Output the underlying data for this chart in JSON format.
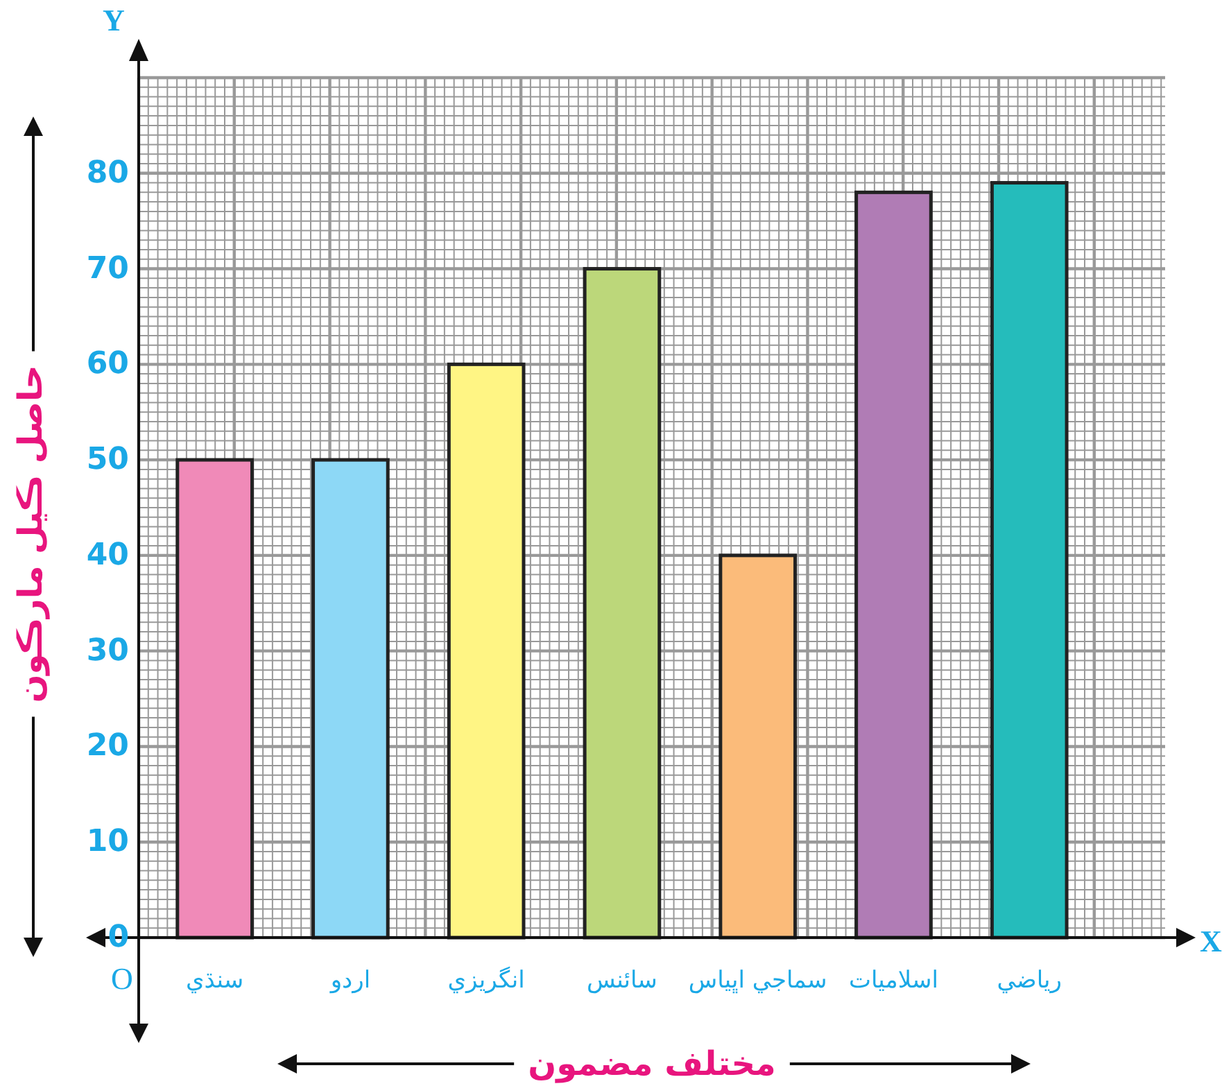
{
  "chart_data": {
    "type": "bar",
    "categories": [
      "سنڌي",
      "اردو",
      "انگريزي",
      "سائنس",
      "سماجي اڀياس",
      "اسلاميات",
      "رياضي"
    ],
    "values": [
      50,
      50,
      60,
      70,
      40,
      78,
      79
    ],
    "colors": [
      "#f08ab8",
      "#8dd8f6",
      "#fff584",
      "#bcd77a",
      "#fbbb7a",
      "#b07cb5",
      "#25bcbb"
    ],
    "xlabel": "مختلف مضمون",
    "ylabel": "حاصل ڪيل مارڪون",
    "ylim": [
      0,
      90
    ],
    "yticks": [
      0,
      10,
      20,
      30,
      40,
      50,
      60,
      70,
      80
    ],
    "grid": true,
    "annotations": [
      "X",
      "Y",
      "O"
    ]
  }
}
